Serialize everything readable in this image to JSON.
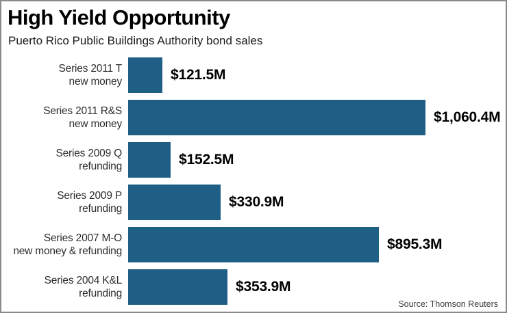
{
  "header": {
    "title": "High Yield Opportunity",
    "subtitle": "Puerto Rico Public Buildings Authority bond sales"
  },
  "source": "Source: Thomson Reuters",
  "colors": {
    "bar": "#1F5F86",
    "border": "#8A8A8A",
    "title_text": "#000000",
    "label_text": "#2D2D2D"
  },
  "chart_data": {
    "type": "bar",
    "orientation": "horizontal",
    "title": "High Yield Opportunity",
    "subtitle": "Puerto Rico Public Buildings Authority bond sales",
    "categories": [
      [
        "Series 2011 T",
        "new money"
      ],
      [
        "Series 2011 R&S",
        "new money"
      ],
      [
        "Series 2009 Q",
        "refunding"
      ],
      [
        "Series 2009 P",
        "refunding"
      ],
      [
        "Series 2007 M-O",
        "new money & refunding"
      ],
      [
        "Series 2004 K&L",
        "refunding"
      ]
    ],
    "values": [
      121.5,
      1060.4,
      152.5,
      330.9,
      895.3,
      353.9
    ],
    "value_labels": [
      "$121.5M",
      "$1,060.4M",
      "$152.5M",
      "$330.9M",
      "$895.3M",
      "$353.9M"
    ],
    "xlim": [
      0,
      1100
    ],
    "grid": false,
    "legend": false,
    "source": "Source: Thomson Reuters"
  }
}
